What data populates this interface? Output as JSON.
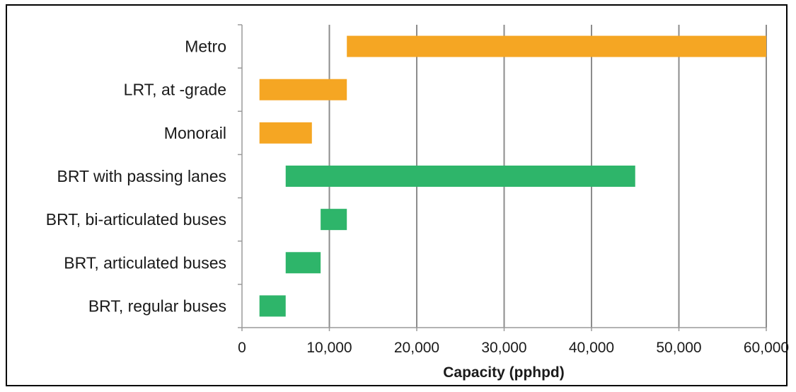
{
  "chart_data": {
    "type": "bar",
    "orientation": "horizontal",
    "subtype": "floating-range",
    "title": "",
    "xlabel": "Capacity (pphpd)",
    "ylabel": "",
    "xlim": [
      0,
      60000
    ],
    "x_ticks": [
      0,
      10000,
      20000,
      30000,
      40000,
      50000,
      60000
    ],
    "x_tick_labels": [
      "0",
      "10,000",
      "20,000",
      "30,000",
      "40,000",
      "50,000",
      "60,000"
    ],
    "grid": "vertical",
    "categories": [
      "Metro",
      "LRT, at -grade",
      "Monorail",
      "BRT with passing lanes",
      "BRT, bi-articulated buses",
      "BRT, articulated buses",
      "BRT, regular buses"
    ],
    "ranges": [
      {
        "category": "Metro",
        "low": 12000,
        "high": 60000,
        "color": "#F5A623"
      },
      {
        "category": "LRT, at -grade",
        "low": 2000,
        "high": 12000,
        "color": "#F5A623"
      },
      {
        "category": "Monorail",
        "low": 2000,
        "high": 8000,
        "color": "#F5A623"
      },
      {
        "category": "BRT with passing lanes",
        "low": 5000,
        "high": 45000,
        "color": "#2EB56A"
      },
      {
        "category": "BRT, bi-articulated buses",
        "low": 9000,
        "high": 12000,
        "color": "#2EB56A"
      },
      {
        "category": "BRT, articulated buses",
        "low": 5000,
        "high": 9000,
        "color": "#2EB56A"
      },
      {
        "category": "BRT, regular buses",
        "low": 2000,
        "high": 5000,
        "color": "#2EB56A"
      }
    ],
    "colors": {
      "rail": "#F5A623",
      "brt": "#2EB56A",
      "grid": "#8c8c8c"
    }
  }
}
